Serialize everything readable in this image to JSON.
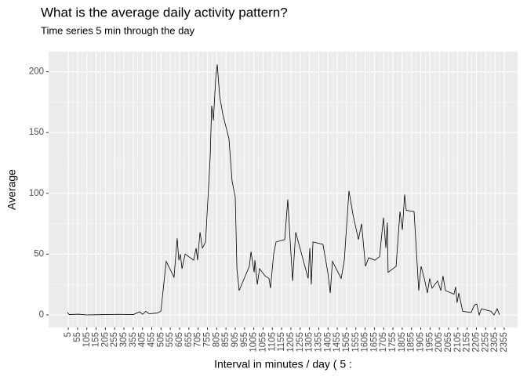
{
  "chart_data": {
    "type": "line",
    "title": "What is the average daily activity pattern?",
    "subtitle": "Time series 5 min through the day",
    "x_label": "Interval in minutes / day ( 5 :",
    "y_label": "Average",
    "x": [
      0,
      10,
      60,
      102,
      271,
      356,
      389,
      406,
      423,
      440,
      483,
      504,
      533,
      575,
      592,
      601,
      609,
      618,
      635,
      681,
      694,
      702,
      715,
      728,
      745,
      770,
      778,
      787,
      800,
      808,
      821,
      838,
      871,
      888,
      905,
      914,
      926,
      981,
      990,
      1007,
      1011,
      1024,
      1036,
      1066,
      1087,
      1095,
      1112,
      1125,
      1172,
      1188,
      1214,
      1231,
      1298,
      1307,
      1315,
      1324,
      1378,
      1404,
      1417,
      1429,
      1476,
      1493,
      1518,
      1539,
      1569,
      1586,
      1607,
      1624,
      1658,
      1683,
      1704,
      1717,
      1725,
      1729,
      1772,
      1793,
      1806,
      1818,
      1827,
      1869,
      1894,
      1907,
      1924,
      1941,
      1953,
      1966,
      1996,
      2013,
      2025,
      2038,
      2084,
      2093,
      2101,
      2110,
      2131,
      2177,
      2194,
      2207,
      2220,
      2232,
      2283,
      2300,
      2317,
      2330
    ],
    "series": [
      {
        "name": "Average",
        "color": "#000000",
        "values": [
          2,
          0.3,
          0.6,
          0,
          0.5,
          0.3,
          2.5,
          0.5,
          3,
          1,
          1.5,
          3,
          44,
          31,
          63,
          45,
          50,
          38,
          50,
          45,
          55,
          45,
          68,
          55,
          60,
          130,
          172,
          160,
          195,
          206,
          180,
          165,
          145,
          110,
          97,
          38,
          20,
          40,
          52,
          35,
          45,
          25,
          38,
          32,
          30,
          22,
          50,
          60,
          62,
          95,
          28,
          68,
          30,
          55,
          25,
          60,
          58,
          35,
          18,
          44,
          30,
          45,
          102,
          83,
          62,
          75,
          40,
          47,
          45,
          48,
          80,
          55,
          76,
          35,
          40,
          85,
          70,
          99,
          86,
          85,
          20,
          40,
          30,
          18,
          30,
          22,
          28,
          20,
          32,
          20,
          17,
          23,
          10,
          18,
          3,
          2,
          8,
          9,
          0,
          5,
          3,
          0,
          5,
          0
        ]
      }
    ],
    "xlim": [
      -101,
      2427
    ],
    "xticks": [
      5,
      55,
      105,
      155,
      205,
      255,
      305,
      355,
      405,
      455,
      505,
      555,
      605,
      655,
      705,
      755,
      805,
      855,
      905,
      955,
      1005,
      1055,
      1105,
      1155,
      1205,
      1255,
      1305,
      1355,
      1405,
      1455,
      1505,
      1555,
      1605,
      1655,
      1705,
      1755,
      1805,
      1855,
      1905,
      1955,
      2005,
      2055,
      2105,
      2155,
      2205,
      2255,
      2305,
      2355
    ],
    "ylim": [
      -10.3,
      216.5
    ],
    "yticks": [
      0,
      50,
      100,
      150,
      200
    ],
    "grid": true
  }
}
